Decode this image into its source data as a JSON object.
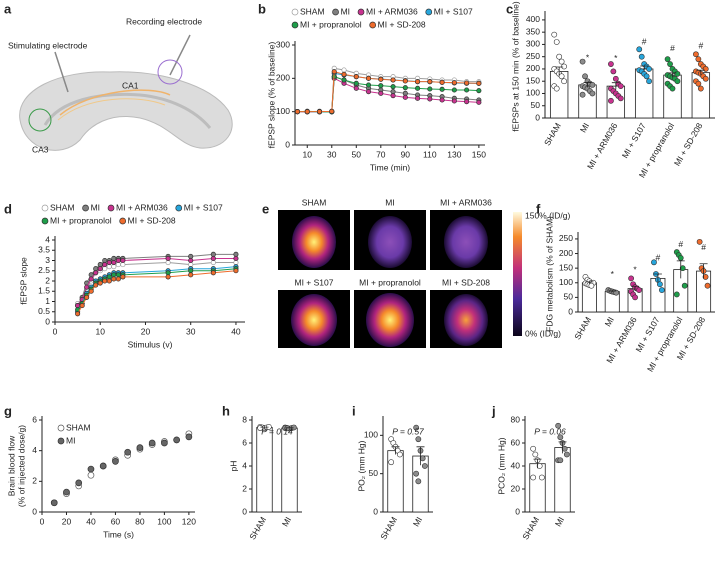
{
  "illustration": {
    "panel": "a",
    "labels": [
      "Stimulating electrode",
      "Recording electrode",
      "CA1",
      "CA3"
    ]
  },
  "images": {
    "panel": "e",
    "titles": [
      "SHAM",
      "MI",
      "MI + ARM036",
      "MI + S107",
      "MI + propranolol",
      "MI + SD-208"
    ],
    "colorbar_max": "150% (ID/g)",
    "colorbar_min": "0% (ID/g)"
  },
  "chart_data": [
    {
      "type": "line",
      "panel": "b",
      "x_label": "Time (min)",
      "y_label": "fEPSP slope (% of baseline)",
      "x": [
        2,
        10,
        20,
        30,
        32,
        40,
        50,
        60,
        70,
        80,
        90,
        100,
        110,
        120,
        130,
        140,
        150
      ],
      "xlim": [
        0,
        155
      ],
      "xticks": [
        10,
        30,
        50,
        70,
        90,
        110,
        130,
        150
      ],
      "ylim": [
        0,
        300
      ],
      "yticks": [
        0,
        100,
        200,
        300
      ],
      "series": [
        {
          "name": "SHAM",
          "color": "#9e9e9e",
          "open": true,
          "values": [
            100,
            101,
            99,
            100,
            230,
            225,
            215,
            210,
            205,
            205,
            200,
            200,
            198,
            195,
            195,
            190,
            190
          ]
        },
        {
          "name": "MI",
          "color": "#7f7f7f",
          "values": [
            100,
            100,
            101,
            100,
            205,
            195,
            180,
            170,
            165,
            160,
            155,
            150,
            148,
            145,
            140,
            138,
            135
          ]
        },
        {
          "name": "MI + ARM036",
          "color": "#c8338f",
          "values": [
            100,
            99,
            100,
            101,
            200,
            185,
            170,
            160,
            155,
            148,
            143,
            140,
            138,
            135,
            132,
            130,
            128
          ]
        },
        {
          "name": "MI + S107",
          "color": "#27a6dc",
          "values": [
            100,
            100,
            99,
            100,
            215,
            210,
            205,
            200,
            198,
            195,
            193,
            190,
            190,
            188,
            186,
            185,
            185
          ]
        },
        {
          "name": "MI + propranolol",
          "color": "#1e9e4a",
          "values": [
            100,
            101,
            100,
            99,
            205,
            195,
            185,
            180,
            178,
            175,
            172,
            170,
            168,
            167,
            165,
            165,
            163
          ]
        },
        {
          "name": "MI + SD-208",
          "color": "#ef6c2d",
          "values": [
            100,
            100,
            100,
            101,
            220,
            212,
            205,
            200,
            197,
            195,
            192,
            190,
            190,
            188,
            187,
            186,
            185
          ]
        }
      ]
    },
    {
      "type": "bar",
      "panel": "c",
      "y_label": "fEPSPs at 150 min (% of baseline)",
      "categories": [
        "SHAM",
        "MI",
        "MI + ARM036",
        "MI + S107",
        "MI + propranolol",
        "MI + SD-208"
      ],
      "colors": [
        "#ffffff",
        "#8c8c8c",
        "#c8338f",
        "#27a6dc",
        "#1e9e4a",
        "#ef6c2d"
      ],
      "values": [
        190,
        135,
        130,
        200,
        175,
        185
      ],
      "errors": [
        18,
        10,
        14,
        12,
        9,
        10
      ],
      "points": [
        [
          340,
          310,
          250,
          230,
          210,
          200,
          190,
          180,
          170,
          150,
          130,
          120
        ],
        [
          230,
          170,
          150,
          140,
          135,
          130,
          125,
          120,
          110,
          100,
          95
        ],
        [
          220,
          190,
          160,
          140,
          130,
          120,
          110,
          100,
          90,
          80,
          70
        ],
        [
          280,
          250,
          220,
          210,
          200,
          195,
          190,
          180,
          170,
          150
        ],
        [
          240,
          220,
          200,
          190,
          180,
          175,
          170,
          165,
          160,
          150,
          140,
          130,
          120
        ],
        [
          260,
          240,
          220,
          210,
          200,
          190,
          185,
          180,
          170,
          160,
          150,
          140,
          120
        ]
      ],
      "annotations": [
        null,
        "*",
        "*",
        "#",
        "#",
        "#"
      ],
      "ylim": [
        0,
        420
      ],
      "yticks": [
        0,
        50,
        100,
        150,
        200,
        250,
        300,
        350,
        400
      ]
    },
    {
      "type": "line",
      "panel": "d",
      "x_label": "Stimulus (v)",
      "y_label": "fEPSP slope",
      "x": [
        5,
        6,
        7,
        8,
        9,
        10,
        11,
        12,
        13,
        14,
        15,
        25,
        30,
        35,
        40
      ],
      "xlim": [
        0,
        42
      ],
      "xticks": [
        0,
        10,
        20,
        30,
        40
      ],
      "ylim": [
        0,
        4
      ],
      "yticks": [
        0,
        0.5,
        1,
        1.5,
        2,
        2.5,
        3,
        3.5,
        4
      ],
      "series": [
        {
          "name": "SHAM",
          "color": "#9e9e9e",
          "open": true,
          "values": [
            0.9,
            1.1,
            1.6,
            2.0,
            2.4,
            2.5,
            2.6,
            2.7,
            2.7,
            2.8,
            2.8,
            2.9,
            2.8,
            2.9,
            2.9
          ]
        },
        {
          "name": "MI",
          "color": "#7f7f7f",
          "values": [
            0.8,
            1.2,
            1.9,
            2.3,
            2.6,
            2.8,
            3.0,
            3.0,
            3.1,
            3.1,
            3.1,
            3.2,
            3.2,
            3.3,
            3.3
          ]
        },
        {
          "name": "MI + ARM036",
          "color": "#c8338f",
          "values": [
            0.8,
            1.1,
            1.7,
            2.1,
            2.4,
            2.6,
            2.8,
            2.9,
            2.9,
            3.0,
            3.0,
            3.1,
            3.0,
            3.1,
            3.1
          ]
        },
        {
          "name": "MI + S107",
          "color": "#27a6dc",
          "values": [
            0.5,
            0.9,
            1.4,
            1.7,
            2.0,
            2.1,
            2.2,
            2.3,
            2.4,
            2.4,
            2.4,
            2.5,
            2.6,
            2.6,
            2.7
          ]
        },
        {
          "name": "MI + propranolol",
          "color": "#1e9e4a",
          "values": [
            0.6,
            0.9,
            1.3,
            1.6,
            1.9,
            2.0,
            2.1,
            2.2,
            2.3,
            2.3,
            2.3,
            2.4,
            2.5,
            2.5,
            2.6
          ]
        },
        {
          "name": "MI + SD-208",
          "color": "#ef6c2d",
          "values": [
            0.4,
            0.8,
            1.2,
            1.5,
            1.8,
            1.9,
            2.0,
            2.0,
            2.1,
            2.1,
            2.2,
            2.2,
            2.3,
            2.4,
            2.5
          ]
        }
      ]
    },
    {
      "type": "bar",
      "panel": "f",
      "y_label": "FDG metabolism (% of SHAM)",
      "categories": [
        "SHAM",
        "MI",
        "MI + ARM036",
        "MI + S107",
        "MI + propranolol",
        "MI + SD-208"
      ],
      "colors": [
        "#ffffff",
        "#8c8c8c",
        "#c8338f",
        "#27a6dc",
        "#1e9e4a",
        "#ef6c2d"
      ],
      "values": [
        100,
        70,
        80,
        115,
        145,
        140
      ],
      "errors": [
        3,
        2,
        8,
        15,
        30,
        25
      ],
      "points": [
        [
          120,
          110,
          105,
          100,
          100,
          98,
          95,
          92,
          90
        ],
        [
          75,
          72,
          70,
          68,
          66
        ],
        [
          115,
          95,
          85,
          80,
          75,
          70,
          60,
          50
        ],
        [
          170,
          130,
          110,
          95,
          75
        ],
        [
          205,
          195,
          185,
          150,
          90,
          60
        ],
        [
          240,
          150,
          140,
          120,
          90
        ]
      ],
      "annotations": [
        null,
        "*",
        "*",
        "#",
        "#",
        "#"
      ],
      "ylim": [
        0,
        260
      ],
      "yticks": [
        0,
        50,
        100,
        150,
        200,
        250
      ]
    },
    {
      "type": "scatter",
      "panel": "g",
      "x_label": "Time (s)",
      "y_label": [
        "Brain blood flow",
        "(% of injected dose/g)"
      ],
      "x": [
        10,
        20,
        30,
        40,
        50,
        60,
        70,
        80,
        90,
        100,
        110,
        120
      ],
      "xlim": [
        0,
        125
      ],
      "xticks": [
        0,
        20,
        40,
        60,
        80,
        100,
        120
      ],
      "ylim": [
        0,
        6
      ],
      "yticks": [
        0,
        2,
        4,
        6
      ],
      "series": [
        {
          "name": "SHAM",
          "color": "#555555",
          "open": true,
          "values": [
            0.6,
            1.2,
            1.7,
            2.4,
            3.0,
            3.4,
            3.7,
            4.1,
            4.4,
            4.6,
            4.7,
            5.1
          ]
        },
        {
          "name": "MI",
          "color": "#666666",
          "values": [
            0.6,
            1.3,
            1.9,
            2.8,
            3.0,
            3.3,
            3.9,
            4.2,
            4.5,
            4.5,
            4.7,
            4.9
          ]
        }
      ]
    },
    {
      "type": "bar",
      "panel": "h",
      "y_label": "pH",
      "annotation": "P = 0.14",
      "categories": [
        "SHAM",
        "MI"
      ],
      "colors": [
        "#ffffff",
        "#8c8c8c"
      ],
      "values": [
        7.35,
        7.3
      ],
      "errors": [
        0.03,
        0.02
      ],
      "points": [
        [
          7.4,
          7.35,
          7.3,
          7.35,
          7.4,
          7.3
        ],
        [
          7.35,
          7.3,
          7.25,
          7.3,
          7.35,
          7.3,
          7.28
        ]
      ],
      "ylim": [
        0,
        8
      ],
      "yticks": [
        0,
        2,
        4,
        6,
        8
      ]
    },
    {
      "type": "bar",
      "panel": "i",
      "y_label": "PO₂ (mm Hg)",
      "annotation": "P = 0.57",
      "categories": [
        "SHAM",
        "MI"
      ],
      "colors": [
        "#ffffff",
        "#8c8c8c"
      ],
      "values": [
        80,
        73
      ],
      "errors": [
        5,
        12
      ],
      "points": [
        [
          95,
          90,
          85,
          80,
          75,
          65
        ],
        [
          110,
          95,
          80,
          70,
          60,
          50,
          40
        ]
      ],
      "ylim": [
        0,
        120
      ],
      "yticks": [
        0,
        50,
        100
      ]
    },
    {
      "type": "bar",
      "panel": "j",
      "y_label": "PCO₂ (mm Hg)",
      "annotation": "P = 0.06",
      "categories": [
        "SHAM",
        "MI"
      ],
      "colors": [
        "#ffffff",
        "#8c8c8c"
      ],
      "values": [
        42,
        56
      ],
      "errors": [
        4,
        5
      ],
      "points": [
        [
          55,
          50,
          45,
          40,
          30,
          30
        ],
        [
          75,
          65,
          60,
          55,
          50,
          45,
          45
        ]
      ],
      "ylim": [
        0,
        80
      ],
      "yticks": [
        0,
        20,
        40,
        60,
        80
      ]
    }
  ]
}
